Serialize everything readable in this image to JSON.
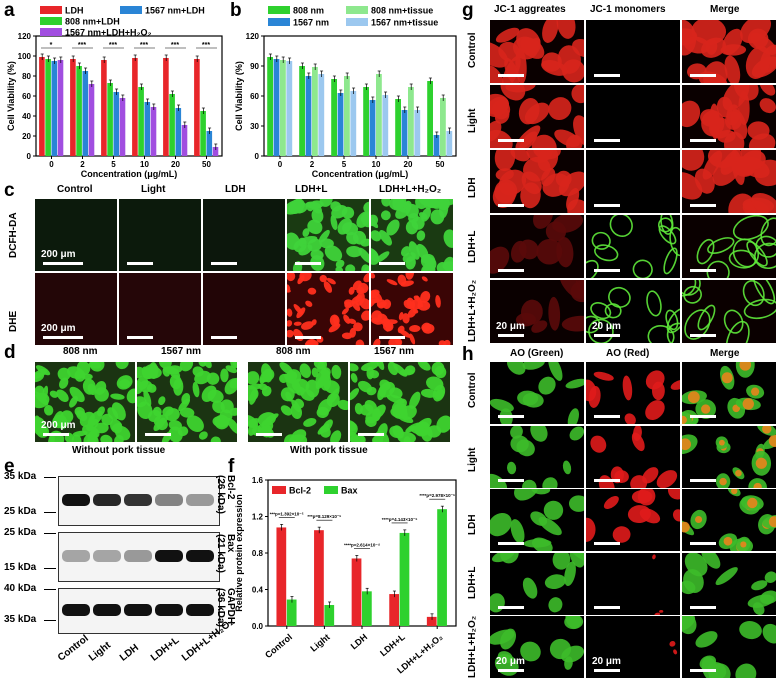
{
  "panels": {
    "a": "a",
    "b": "b",
    "c": "c",
    "d": "d",
    "e": "e",
    "f": "f",
    "g": "g",
    "h": "h"
  },
  "colors": {
    "red": "#e8262a",
    "blue": "#2a85d6",
    "green": "#2ed12e",
    "purple": "#a14ee0",
    "lightgreen": "#8ee88e",
    "lightblue": "#9cc8ef"
  },
  "chart_data": [
    {
      "id": "a",
      "type": "bar",
      "categories": [
        "0",
        "2",
        "5",
        "10",
        "20",
        "50"
      ],
      "xlabel": "Concentration (μg/mL)",
      "ylabel": "Cell Viability (%)",
      "ylim": [
        0,
        120
      ],
      "yticks": [
        0,
        20,
        40,
        60,
        80,
        100,
        120
      ],
      "series": [
        {
          "name": "LDH",
          "color": "#e8262a",
          "values": [
            99,
            97,
            96,
            98,
            98,
            97
          ]
        },
        {
          "name": "808 nm+LDH",
          "color": "#2ed12e",
          "values": [
            97,
            90,
            73,
            69,
            62,
            45
          ]
        },
        {
          "name": "1567 nm+LDH",
          "color": "#2a85d6",
          "values": [
            95,
            85,
            64,
            54,
            48,
            25
          ]
        },
        {
          "name": "1567 nm+LDH+H₂O₂",
          "color": "#a14ee0",
          "values": [
            96,
            72,
            58,
            49,
            31,
            9
          ]
        }
      ]
    },
    {
      "id": "b",
      "type": "bar",
      "categories": [
        "0",
        "2",
        "5",
        "10",
        "20",
        "50"
      ],
      "xlabel": "Concentration (μg/mL)",
      "ylabel": "Cell Viability (%)",
      "ylim": [
        0,
        120
      ],
      "yticks": [
        0,
        30,
        60,
        90,
        120
      ],
      "series": [
        {
          "name": "808 nm",
          "color": "#2ed12e",
          "values": [
            99,
            90,
            77,
            69,
            57,
            75
          ]
        },
        {
          "name": "1567 nm",
          "color": "#2a85d6",
          "values": [
            97,
            80,
            63,
            56,
            46,
            21
          ]
        },
        {
          "name": "808 nm+tissue",
          "color": "#8ee88e",
          "values": [
            96,
            89,
            80,
            82,
            69,
            58
          ]
        },
        {
          "name": "1567 nm+tissue",
          "color": "#9cc8ef",
          "values": [
            95,
            82,
            65,
            61,
            46,
            25
          ]
        }
      ]
    },
    {
      "id": "f",
      "type": "bar",
      "categories": [
        "Control",
        "Light",
        "LDH",
        "LDH+L",
        "LDH+L+H₂O₂"
      ],
      "ylabel": "Relative protein expression",
      "ylim": [
        0,
        1.6
      ],
      "yticks": [
        0.0,
        0.4,
        0.8,
        1.2,
        1.6
      ],
      "series": [
        {
          "name": "Bcl-2",
          "color": "#e8262a",
          "values": [
            1.08,
            1.05,
            0.74,
            0.35,
            0.1
          ]
        },
        {
          "name": "Bax",
          "color": "#2ed12e",
          "values": [
            0.29,
            0.23,
            0.38,
            1.02,
            1.28
          ]
        }
      ],
      "annotations": [
        "***p=1.392×10⁻⁵",
        "***p=8.129×10⁻⁶",
        "****p=2.614×10⁻⁴",
        "****p=4.143×10⁻⁶",
        "****p=2.978×10⁻⁶"
      ]
    }
  ],
  "c": {
    "cols": [
      "Control",
      "Light",
      "LDH",
      "LDH+L",
      "LDH+L+H₂O₂"
    ],
    "rows": [
      "DCFH-DA",
      "DHE"
    ],
    "scale": "200 μm"
  },
  "d": {
    "cols": [
      "808 nm",
      "1567 nm",
      "808 nm",
      "1567 nm"
    ],
    "groups": [
      "Without pork tissue",
      "With pork tissue"
    ],
    "scale": "200 μm"
  },
  "e": {
    "markers": [
      "35 kDa",
      "25 kDa",
      "25 kDa",
      "15 kDa",
      "40 kDa",
      "35 kDa"
    ],
    "bands": [
      "Bcl-2",
      "(26 kDa)",
      "Bax",
      "(21 kDa)",
      "GAPDH",
      "(36 kDa)"
    ],
    "lanes": [
      "Control",
      "Light",
      "LDH",
      "LDH+L",
      "LDH+L+H₂O₂"
    ]
  },
  "g": {
    "cols": [
      "JC-1 aggreates",
      "JC-1 monomers",
      "Merge"
    ],
    "rows": [
      "Control",
      "Light",
      "LDH",
      "LDH+L",
      "LDH+L+H₂O₂"
    ],
    "scale": "20 μm"
  },
  "h": {
    "cols": [
      "AO (Green)",
      "AO (Red)",
      "Merge"
    ],
    "rows": [
      "Control",
      "Light",
      "LDH",
      "LDH+L",
      "LDH+L+H₂O₂"
    ],
    "scale": "20 μm"
  }
}
